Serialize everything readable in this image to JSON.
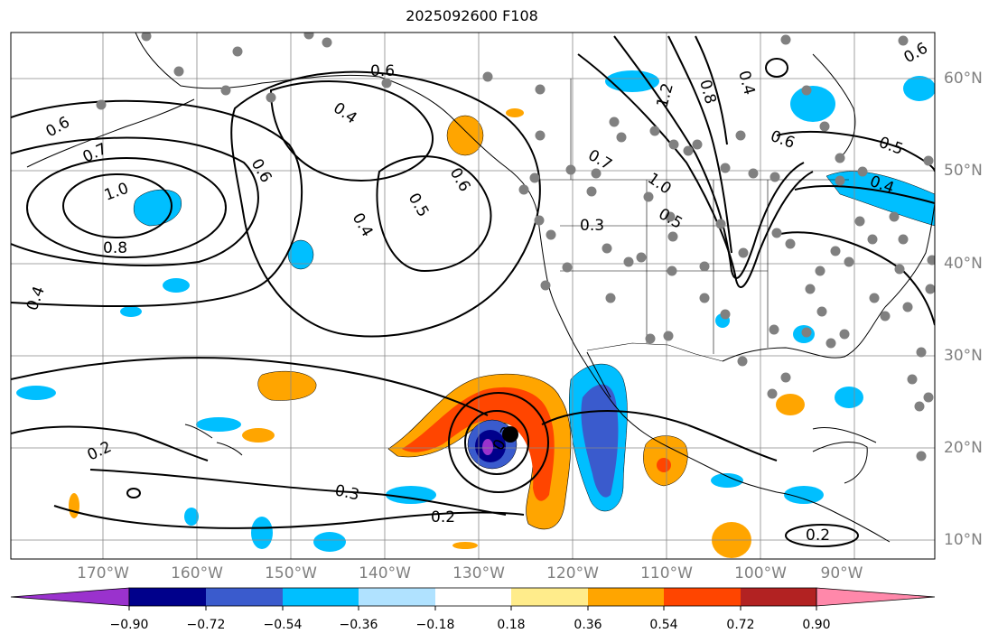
{
  "title": "2025092600 F108",
  "map": {
    "projection": "PlateCarree",
    "lon_range": [
      -180,
      -80
    ],
    "lat_range": [
      8,
      65
    ],
    "lon_ticks": [
      "170°W",
      "160°W",
      "150°W",
      "140°W",
      "130°W",
      "120°W",
      "110°W",
      "100°W",
      "90°W"
    ],
    "lat_ticks": [
      "60°N",
      "50°N",
      "40°N",
      "30°N",
      "20°N",
      "10°N"
    ],
    "gridlines": true,
    "contour_labels": [
      "0.6",
      "0.7",
      "0.6",
      "1.0",
      "0.8",
      "0.4",
      "0.6",
      "0.4",
      "0.5",
      "0.6",
      "0.4",
      "0.3",
      "0.2",
      "0.3",
      "0.2",
      "0.2",
      "1.2",
      "1.0",
      "0.8",
      "0.4",
      "0.6",
      "0.5",
      "0.4",
      "0.5",
      "0.3",
      "0.7",
      "0.6"
    ],
    "storm_marker": "black-dot"
  },
  "colorbar": {
    "tick_labels": [
      "−0.90",
      "−0.72",
      "−0.54",
      "−0.36",
      "−0.18",
      "0.18",
      "0.36",
      "0.54",
      "0.72",
      "0.90"
    ],
    "colors": [
      "#9a32cd",
      "#00008b",
      "#3a5bcd",
      "#00bfff",
      "#b0e2ff",
      "#ffffff",
      "#ffec8b",
      "#ffa500",
      "#ff4500",
      "#b22222",
      "#ff88aa"
    ]
  }
}
